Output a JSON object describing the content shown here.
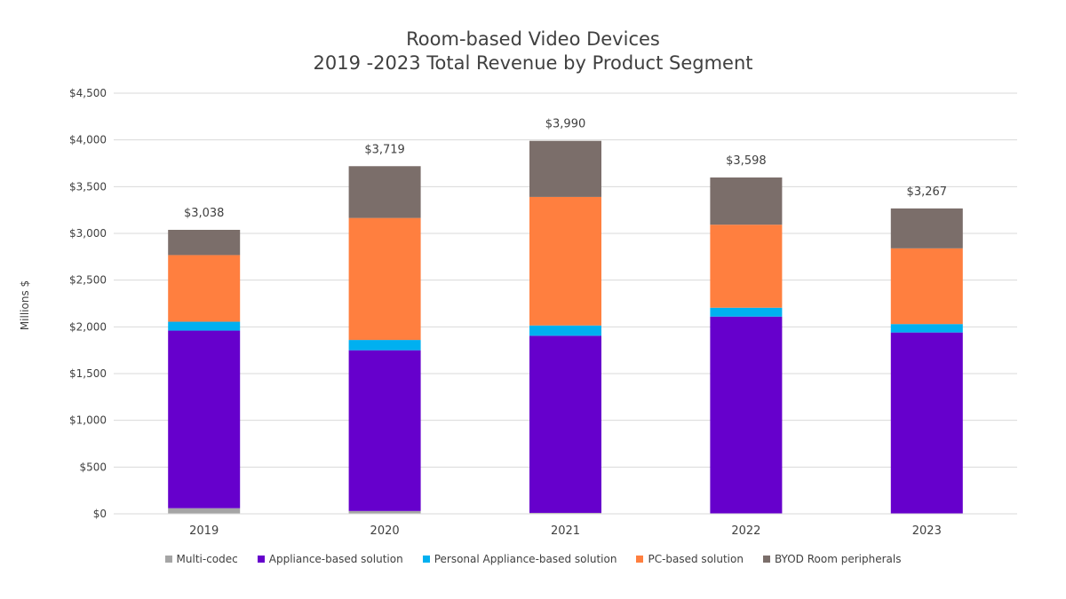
{
  "chart_data": {
    "type": "bar",
    "stacked": true,
    "title": "Room-based Video Devices",
    "subtitle": "2019 -2023 Total Revenue by Product Segment",
    "ylabel": "Millions $",
    "xlabel": "",
    "ylim": [
      0,
      4500
    ],
    "yticks": [
      0,
      500,
      1000,
      1500,
      2000,
      2500,
      3000,
      3500,
      4000,
      4500
    ],
    "ytick_labels": [
      "$0",
      "$500",
      "$1,000",
      "$1,500",
      "$2,000",
      "$2,500",
      "$3,000",
      "$3,500",
      "$4,000",
      "$4,500"
    ],
    "grid": true,
    "legend_position": "bottom",
    "categories": [
      "2019",
      "2020",
      "2021",
      "2022",
      "2023"
    ],
    "totals": [
      3038,
      3719,
      3990,
      3598,
      3267
    ],
    "total_labels": [
      "$3,038",
      "$3,719",
      "$3,990",
      "$3,598",
      "$3,267"
    ],
    "series": [
      {
        "name": "Multi-codec",
        "color": "#a5a5a5",
        "values": [
          60,
          30,
          10,
          5,
          3
        ]
      },
      {
        "name": "Appliance-based solution",
        "color": "#6600cc",
        "values": [
          1900,
          1720,
          1895,
          2105,
          1937
        ]
      },
      {
        "name": "Personal Appliance-based solution",
        "color": "#00b0f0",
        "values": [
          95,
          110,
          110,
          95,
          90
        ]
      },
      {
        "name": "PC-based solution",
        "color": "#ff7f3f",
        "values": [
          713,
          1305,
          1375,
          888,
          810
        ]
      },
      {
        "name": "BYOD Room peripherals",
        "color": "#7b6e6a",
        "values": [
          270,
          554,
          600,
          505,
          427
        ]
      }
    ]
  }
}
